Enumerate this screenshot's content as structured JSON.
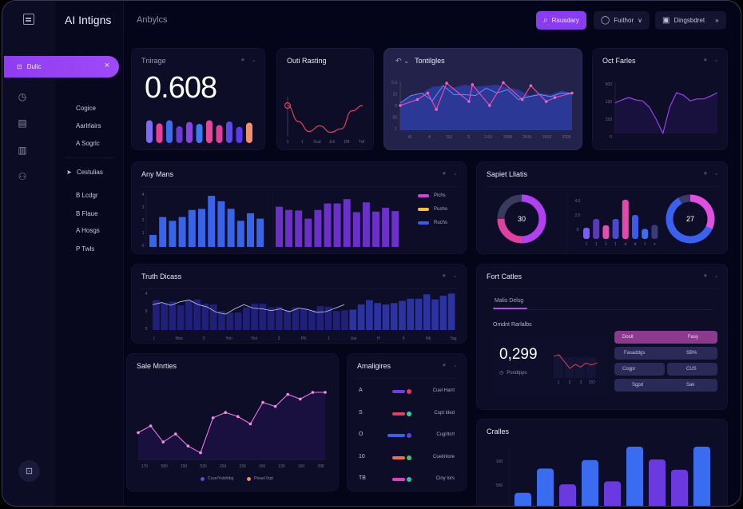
{
  "app": {
    "title": "AI Intigns",
    "subtitle": "Anbylcs"
  },
  "topbar": {
    "buttons": [
      {
        "label": "Rausdary",
        "icon": "search-icon",
        "primary": true
      },
      {
        "label": "Fuithor",
        "icon": "circle-icon",
        "suffix": "∨"
      },
      {
        "label": "Dingsbdret",
        "icon": "image-icon",
        "suffix": "»"
      }
    ]
  },
  "sidebar": {
    "active": {
      "label": "Dulic",
      "close": "×"
    },
    "rail_icons": [
      "clock-icon",
      "calendar-icon",
      "briefcase-icon",
      "users-icon"
    ],
    "items": [
      {
        "label": "Cogice"
      },
      {
        "label": "Aarlrlairs"
      },
      {
        "label": "A Sogrlc"
      }
    ],
    "group": {
      "label": "Cestulias",
      "marker": "➤"
    },
    "group_items": [
      {
        "label": "B Lcdgr"
      },
      {
        "label": "B Flaue"
      },
      {
        "label": "A Hosgs"
      },
      {
        "label": "P Twls"
      }
    ],
    "bottom_icon": "lock-icon"
  },
  "cards": {
    "kpi": {
      "title": "Tnirage",
      "value": "0.608",
      "bars": [
        0.95,
        0.82,
        0.95,
        0.7,
        0.88,
        0.8,
        0.95,
        0.75,
        0.9,
        0.68,
        0.85
      ],
      "bar_colors": [
        "#7b6cf4",
        "#e8409a",
        "#3a6cf0",
        "#6a3ad8",
        "#8844e0",
        "#3a7cf0",
        "#e8449c",
        "#e0409a",
        "#5a4ae8",
        "#5a3af0",
        "#f09070"
      ]
    },
    "outi": {
      "title": "Outi Rasting",
      "x_ticks": [
        "1",
        "1",
        "Dud",
        "Jch",
        "Dff",
        "Tdf"
      ],
      "values": [
        0.72,
        0.35,
        0.12,
        0.25,
        0.1,
        0.18,
        0.6,
        0.72
      ]
    },
    "trend": {
      "title": "Tontilgles",
      "y_ticks": [
        "5.0",
        "10",
        "0",
        "50",
        "1"
      ],
      "x_ticks": [
        "Al",
        "A",
        "110",
        "S",
        "2.63",
        "2008",
        "2015",
        "2019",
        "2009"
      ],
      "area": [
        0.55,
        0.7,
        0.75,
        0.88,
        0.9,
        0.86,
        0.92,
        0.88,
        0.9,
        0.92,
        0.86,
        0.82,
        0.7,
        0.75,
        0.72,
        0.8,
        0.75
      ],
      "line_blue": [
        0.55,
        0.7,
        0.75,
        0.6,
        0.9,
        0.72,
        0.72,
        0.7,
        0.85,
        0.75,
        0.82,
        0.62,
        0.68,
        0.72,
        0.68,
        0.75,
        0.75
      ],
      "line_pink": [
        0.5,
        0.62,
        0.75,
        0.42,
        0.95,
        0.58,
        0.92,
        0.5,
        0.96,
        0.62,
        0.9,
        0.58,
        0.66,
        0.75
      ],
      "pink_x": [
        0,
        0.1,
        0.16,
        0.21,
        0.27,
        0.4,
        0.42,
        0.52,
        0.6,
        0.71,
        0.76,
        0.85,
        0.9,
        1
      ]
    },
    "oct": {
      "title": "Oct Farles",
      "y_ticks": [
        "500",
        "130",
        "150",
        "0"
      ],
      "values": [
        0.64,
        0.7,
        0.75,
        0.7,
        0.68,
        0.55,
        0.3,
        0.0,
        0.55,
        0.85,
        0.8,
        0.68,
        0.72,
        0.72,
        0.78,
        0.85
      ]
    },
    "any": {
      "title": "Any Mans",
      "y_ticks": [
        "4",
        "3",
        "2",
        "1",
        "0"
      ],
      "blue": [
        0.22,
        0.55,
        0.48,
        0.55,
        0.68,
        0.7,
        0.94,
        0.84,
        0.7,
        0.48,
        0.62,
        0.52
      ],
      "purple": [
        0.74,
        0.68,
        0.67,
        0.52,
        0.68,
        0.8,
        0.8,
        0.88,
        0.64,
        0.82,
        0.65,
        0.72,
        0.66
      ],
      "legend": [
        {
          "label": "Pichs",
          "color": "#d040e0"
        },
        {
          "label": "Pusho",
          "color": "#f0c040"
        },
        {
          "label": "Ruchs",
          "color": "#3a5cf0"
        }
      ]
    },
    "sapiet": {
      "title": "Sapiet Lliatis",
      "donut_left": {
        "label": "30",
        "segments": [
          {
            "v": 0.5,
            "c": "#b040f0"
          },
          {
            "v": 0.25,
            "c": "#e040a0"
          },
          {
            "v": 0.25,
            "c": "#3a3a5c"
          }
        ]
      },
      "donut_right": {
        "label": "27",
        "segments": [
          {
            "v": 0.32,
            "c": "#e050e0"
          },
          {
            "v": 0.6,
            "c": "#3a60f0"
          },
          {
            "v": 0.08,
            "c": "#3a3a6a"
          }
        ]
      },
      "y_ticks": [
        "4.0",
        "2.0",
        "0"
      ],
      "x_ticks": [
        "1",
        "1",
        "1",
        "1",
        "d",
        "d",
        "f",
        "v"
      ],
      "bars": [
        0.28,
        0.5,
        0.34,
        0.5,
        0.98,
        0.6,
        0.25,
        0.35
      ],
      "bar_colors": [
        "#7a60f0",
        "#5a3ab8",
        "#e050b0",
        "#4a4ad0",
        "#e04aa8",
        "#3a5ae8",
        "#3a70f0",
        "#3a3a7a"
      ]
    },
    "truth": {
      "title": "Truth Dicass",
      "y_ticks": [
        "4",
        "0",
        "0"
      ],
      "x_ticks": [
        "(",
        "Moz",
        "C",
        "Yon",
        "Yiol",
        "3",
        "PK",
        "1",
        "Uar",
        "H",
        "9",
        "Nb",
        "Tag"
      ],
      "bars": [
        0.82,
        0.74,
        0.78,
        0.68,
        0.8,
        0.84,
        0.72,
        0.7,
        0.52,
        0.48,
        0.48,
        0.62,
        0.72,
        0.72,
        0.62,
        0.64,
        0.54,
        0.62,
        0.6,
        0.54,
        0.66,
        0.64,
        0.52,
        0.54,
        0.56,
        0.7,
        0.82,
        0.74,
        0.7,
        0.74,
        0.8,
        0.86,
        0.86,
        0.98,
        0.84,
        0.94,
        1.0
      ],
      "line": [
        0.72,
        0.78,
        0.7,
        0.8,
        0.85,
        0.72,
        0.65,
        0.5,
        0.45,
        0.6,
        0.72,
        0.62,
        0.6,
        0.55,
        0.6,
        0.52,
        0.62,
        0.58,
        0.5,
        0.52,
        0.62,
        0.72
      ]
    },
    "fort": {
      "title": "Fort Catles",
      "tab": "Malis Delsg",
      "section": "Omdnt Rarlalbs",
      "kpi_value": "0,299",
      "kpi_sub": "Pondtpps",
      "mini_line": [
        0.8,
        0.85,
        0.6,
        0.35,
        0.5,
        0.4,
        0.55,
        0.48,
        0.55
      ],
      "mini_x": [
        "1",
        "2",
        "3",
        "DO"
      ],
      "table": [
        [
          "Dosit",
          "Fasy"
        ],
        [
          "Fasaddgs",
          "SB%"
        ],
        [
          "Cogpr",
          "CUS"
        ],
        [
          "Sgpd",
          "Sak"
        ]
      ]
    },
    "sale": {
      "title": "Sale Mnrties",
      "x_ticks": [
        "170",
        "580",
        "190",
        "530",
        "269",
        "330",
        "150",
        "130",
        "190",
        "338"
      ],
      "values": [
        0.4,
        0.5,
        0.26,
        0.38,
        0.2,
        0.1,
        0.62,
        0.7,
        0.64,
        0.53,
        0.85,
        0.79,
        0.97,
        0.9,
        1.0,
        1.0
      ],
      "legend": [
        {
          "label": "Cuse/Yaldrldaj",
          "color": "#6a40f0"
        },
        {
          "label": "Pleael 0qd",
          "color": "#f09060"
        }
      ]
    },
    "angl": {
      "title": "Amaligires",
      "rows": [
        {
          "label": "A",
          "bar": "#6a40e0",
          "dot": "#e03a60",
          "width": 0.4,
          "text": "Cuel Harrt"
        },
        {
          "label": "S",
          "bar": "#e04060",
          "dot": "#30d0a0",
          "width": 0.4,
          "text": "Cupt lded"
        },
        {
          "label": "O",
          "bar": "#3a60f0",
          "dot": "#5a40e0",
          "width": 0.55,
          "text": "Cugrltcrt"
        },
        {
          "label": "10",
          "bar": "#f07040",
          "dot": "#30d060",
          "width": 0.4,
          "text": "Cuelinlore"
        },
        {
          "label": "TB",
          "bar": "#e040c0",
          "dot": "#30c0a0",
          "width": 0.4,
          "text": "Ciny lors"
        }
      ]
    },
    "cralles": {
      "title": "Cralles",
      "y_ticks": [
        "100",
        "500",
        "0"
      ],
      "bars": [
        0.24,
        0.64,
        0.38,
        0.78,
        0.43,
        1.0,
        0.79,
        0.62,
        1.0
      ],
      "bar_colors": [
        "#3a6cf0",
        "#3a6cf0",
        "#6a3ae0",
        "#3a6cf0",
        "#6a3ae0",
        "#3a6cf0",
        "#6a3ae0",
        "#6a3ae0",
        "#3a6cf0"
      ]
    }
  }
}
